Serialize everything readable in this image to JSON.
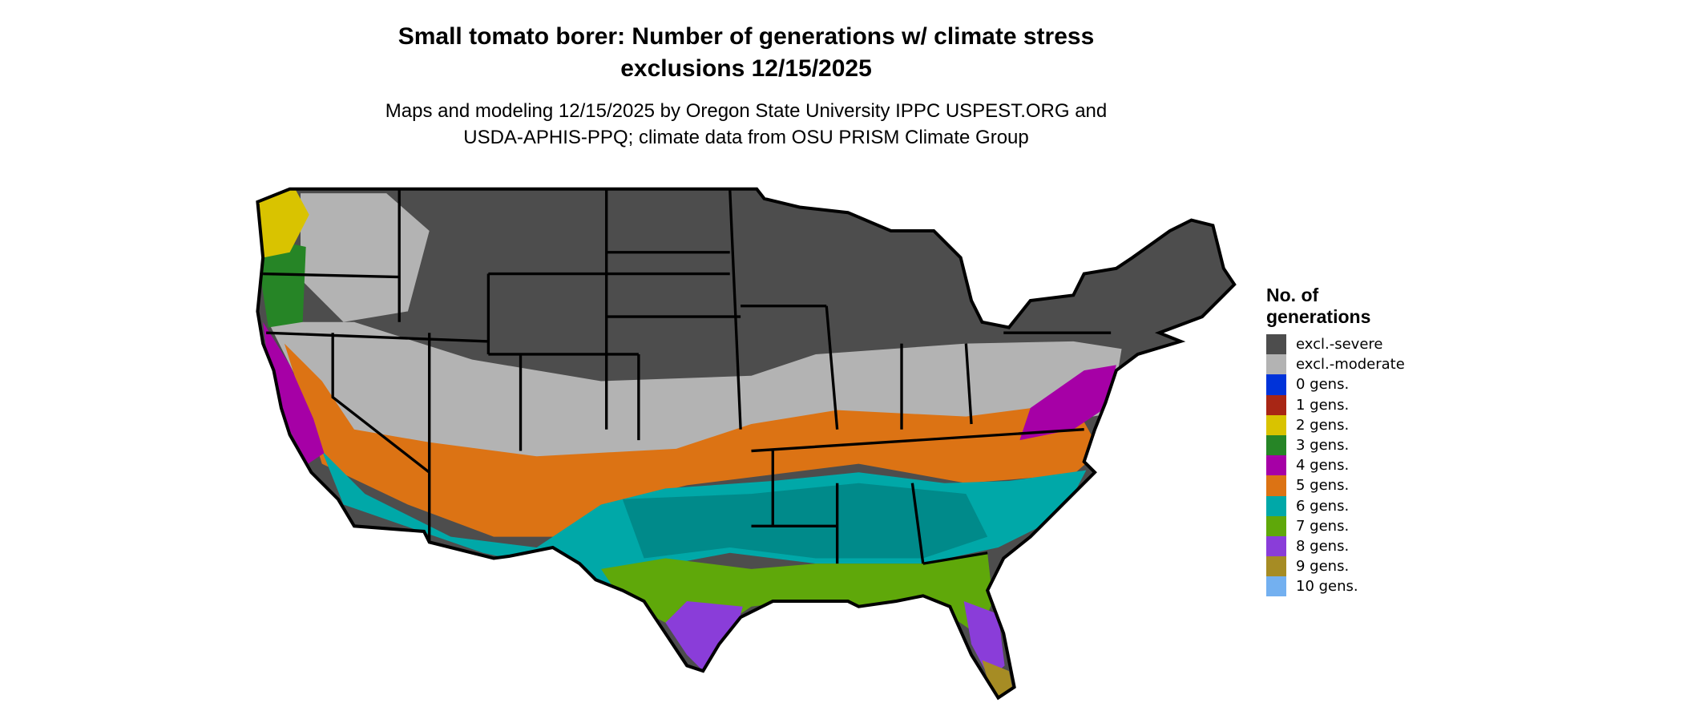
{
  "title_line1": "Small tomato borer: Number of generations w/ climate stress",
  "title_line2": "exclusions 12/15/2025",
  "subtitle_line1": "Maps and modeling 12/15/2025 by Oregon State University IPPC USPEST.ORG and",
  "subtitle_line2": "USDA-APHIS-PPQ; climate data from OSU PRISM Climate Group",
  "legend": {
    "title_line1": "No. of",
    "title_line2": "generations",
    "items": [
      {
        "label": "excl.-severe",
        "color": "#4d4d4d"
      },
      {
        "label": "excl.-moderate",
        "color": "#b3b3b3"
      },
      {
        "label": "0 gens.",
        "color": "#0033d9"
      },
      {
        "label": "1 gens.",
        "color": "#a82615"
      },
      {
        "label": "2 gens.",
        "color": "#d9c300"
      },
      {
        "label": "3 gens.",
        "color": "#268526"
      },
      {
        "label": "4 gens.",
        "color": "#a600a6"
      },
      {
        "label": "5 gens.",
        "color": "#dc7314"
      },
      {
        "label": "6 gens.",
        "color": "#00a8a8"
      },
      {
        "label": "7 gens.",
        "color": "#5fa80a"
      },
      {
        "label": "8 gens.",
        "color": "#8a3dd9"
      },
      {
        "label": "9 gens.",
        "color": "#a68c24"
      },
      {
        "label": "10 gens.",
        "color": "#73b0f0"
      }
    ]
  }
}
